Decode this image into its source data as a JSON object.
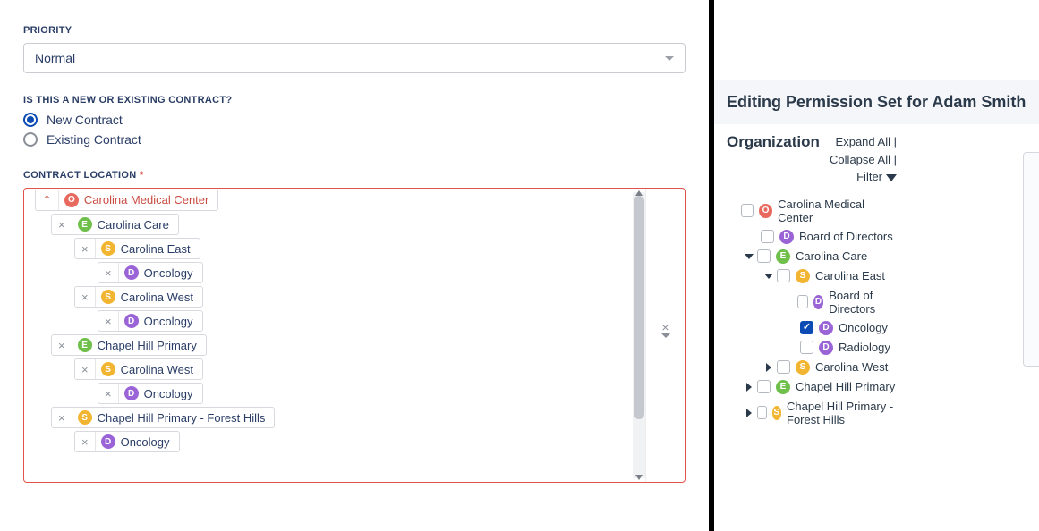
{
  "colors": {
    "accent": "#0b4bb3",
    "error_border": "#e1534a",
    "type_O": "#e86a5f",
    "type_E": "#6fbf4b",
    "type_S": "#f2b531",
    "type_D": "#9a64d6"
  },
  "left": {
    "priority_label": "PRIORITY",
    "priority_value": "Normal",
    "contract_question": "IS THIS A NEW OR EXISTING CONTRACT?",
    "radio_options": [
      {
        "label": "New Contract",
        "checked": true
      },
      {
        "label": "Existing Contract",
        "checked": false
      }
    ],
    "location_label": "CONTRACT LOCATION",
    "location_tree": [
      {
        "level": 0,
        "type": "O",
        "label": "Carolina Medical Center",
        "cut_top": true
      },
      {
        "level": 1,
        "type": "E",
        "label": "Carolina Care"
      },
      {
        "level": 2,
        "type": "S",
        "label": "Carolina East"
      },
      {
        "level": 3,
        "type": "D",
        "label": "Oncology"
      },
      {
        "level": 2,
        "type": "S",
        "label": "Carolina West"
      },
      {
        "level": 3,
        "type": "D",
        "label": "Oncology"
      },
      {
        "level": 1,
        "type": "E",
        "label": "Chapel Hill Primary"
      },
      {
        "level": 2,
        "type": "S",
        "label": "Carolina West"
      },
      {
        "level": 3,
        "type": "D",
        "label": "Oncology"
      },
      {
        "level": 1,
        "type": "S",
        "label": "Chapel Hill Primary - Forest Hills"
      },
      {
        "level": 2,
        "type": "D",
        "label": "Oncology"
      }
    ]
  },
  "right": {
    "header": "Editing Permission Set for Adam Smith",
    "org_title": "Organization",
    "expand_all": "Expand All",
    "collapse_all": "Collapse All",
    "filter_label": "Filter",
    "tree": [
      {
        "level": 0,
        "expander": "none",
        "type": "O",
        "label": "Carolina Medical Center",
        "checked": false
      },
      {
        "level": 1,
        "expander": "none",
        "type": "D",
        "label": "Board of Directors",
        "checked": false
      },
      {
        "level": 1,
        "expander": "open",
        "type": "E",
        "label": "Carolina Care",
        "checked": false
      },
      {
        "level": 2,
        "expander": "open",
        "type": "S",
        "label": "Carolina East",
        "checked": false
      },
      {
        "level": 3,
        "expander": "none",
        "type": "D",
        "label": "Board of Directors",
        "checked": false
      },
      {
        "level": 3,
        "expander": "none",
        "type": "D",
        "label": "Oncology",
        "checked": true
      },
      {
        "level": 3,
        "expander": "none",
        "type": "D",
        "label": "Radiology",
        "checked": false
      },
      {
        "level": 2,
        "expander": "closed",
        "type": "S",
        "label": "Carolina West",
        "checked": false
      },
      {
        "level": 1,
        "expander": "closed",
        "type": "E",
        "label": "Chapel Hill Primary",
        "checked": false
      },
      {
        "level": 1,
        "expander": "closed",
        "type": "S",
        "label": "Chapel Hill Primary - Forest Hills",
        "checked": false
      }
    ]
  }
}
